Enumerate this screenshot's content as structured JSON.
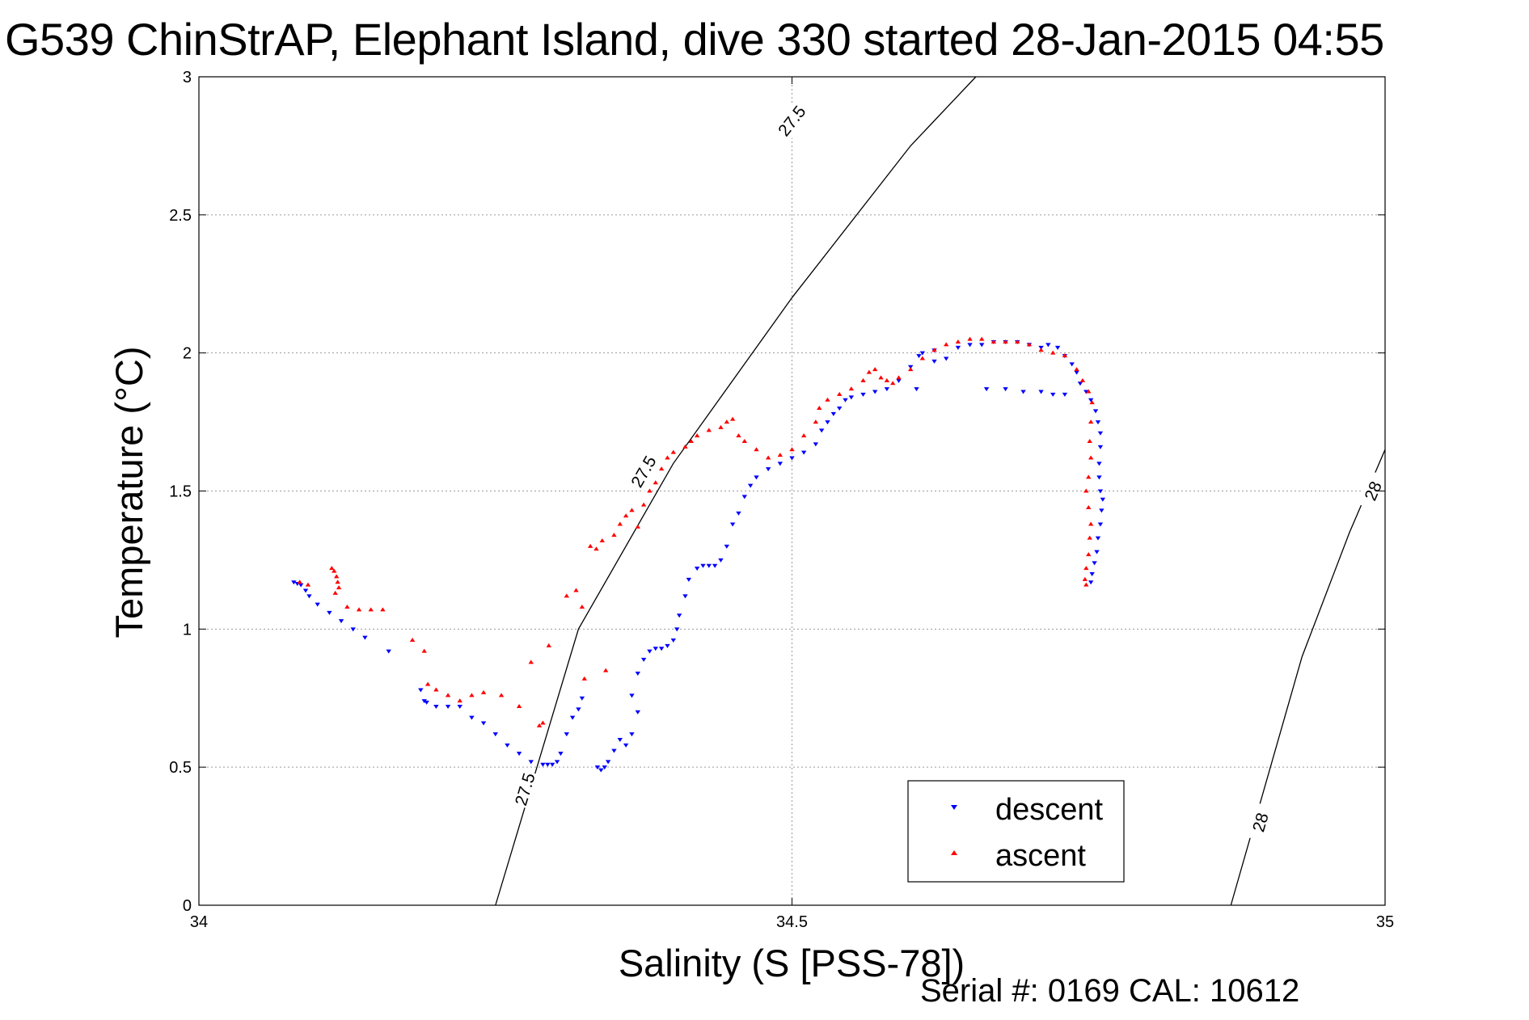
{
  "title": "G539 ChinStrAP, Elephant Island, dive 330 started 28-Jan-2015 04:55",
  "footer_note": "Serial #: 0169 CAL: 10612",
  "chart_data": {
    "type": "scatter",
    "title": "G539 ChinStrAP, Elephant Island, dive 330 started 28-Jan-2015 04:55",
    "xlabel": "Salinity (S [PSS-78])",
    "ylabel": "Temperature (°C)",
    "xlim": [
      34,
      35
    ],
    "ylim": [
      0,
      3
    ],
    "x_ticks": [
      34,
      34.5,
      35
    ],
    "x_tick_labels": [
      "34",
      "34.5",
      "35"
    ],
    "y_ticks": [
      0,
      0.5,
      1,
      1.5,
      2,
      2.5,
      3
    ],
    "y_tick_labels": [
      "0",
      "0.5",
      "1",
      "1.5",
      "2",
      "2.5",
      "3"
    ],
    "grid": true,
    "legend_position": "bottom-right",
    "density_contours": [
      {
        "label": "27.5",
        "color": "#000000",
        "points": [
          [
            34.25,
            0
          ],
          [
            34.32,
            1.0
          ],
          [
            34.4,
            1.6
          ],
          [
            34.5,
            2.2
          ],
          [
            34.6,
            2.75
          ],
          [
            34.655,
            3.0
          ]
        ],
        "label_positions": [
          [
            34.275,
            0.42
          ],
          [
            34.375,
            1.57
          ],
          [
            34.5,
            2.84
          ]
        ]
      },
      {
        "label": "28",
        "color": "#000000",
        "points": [
          [
            34.87,
            0
          ],
          [
            34.93,
            0.9
          ],
          [
            34.97,
            1.35
          ],
          [
            35.0,
            1.65
          ]
        ],
        "label_positions": [
          [
            34.895,
            0.3
          ],
          [
            34.99,
            1.5
          ]
        ]
      }
    ],
    "series": [
      {
        "name": "descent",
        "color": "#0000ff",
        "marker": "triangle-down",
        "points": [
          [
            34.08,
            1.17
          ],
          [
            34.083,
            1.165
          ],
          [
            34.086,
            1.16
          ],
          [
            34.09,
            1.14
          ],
          [
            34.093,
            1.12
          ],
          [
            34.1,
            1.09
          ],
          [
            34.11,
            1.06
          ],
          [
            34.12,
            1.03
          ],
          [
            34.13,
            1.0
          ],
          [
            34.14,
            0.97
          ],
          [
            34.16,
            0.92
          ],
          [
            34.187,
            0.78
          ],
          [
            34.19,
            0.74
          ],
          [
            34.192,
            0.735
          ],
          [
            34.2,
            0.72
          ],
          [
            34.21,
            0.72
          ],
          [
            34.22,
            0.72
          ],
          [
            34.23,
            0.68
          ],
          [
            34.24,
            0.66
          ],
          [
            34.25,
            0.62
          ],
          [
            34.26,
            0.58
          ],
          [
            34.27,
            0.55
          ],
          [
            34.28,
            0.52
          ],
          [
            34.29,
            0.51
          ],
          [
            34.294,
            0.51
          ],
          [
            34.298,
            0.51
          ],
          [
            34.302,
            0.52
          ],
          [
            34.305,
            0.55
          ],
          [
            34.31,
            0.62
          ],
          [
            34.315,
            0.68
          ],
          [
            34.32,
            0.71
          ],
          [
            34.323,
            0.75
          ],
          [
            34.336,
            0.5
          ],
          [
            34.339,
            0.49
          ],
          [
            34.342,
            0.5
          ],
          [
            34.345,
            0.52
          ],
          [
            34.35,
            0.56
          ],
          [
            34.355,
            0.6
          ],
          [
            34.36,
            0.58
          ],
          [
            34.365,
            0.62
          ],
          [
            34.37,
            0.7
          ],
          [
            34.365,
            0.76
          ],
          [
            34.37,
            0.84
          ],
          [
            34.375,
            0.89
          ],
          [
            34.38,
            0.92
          ],
          [
            34.385,
            0.93
          ],
          [
            34.39,
            0.93
          ],
          [
            34.395,
            0.94
          ],
          [
            34.4,
            0.96
          ],
          [
            34.403,
            1.0
          ],
          [
            34.405,
            1.05
          ],
          [
            34.41,
            1.12
          ],
          [
            34.413,
            1.18
          ],
          [
            34.42,
            1.22
          ],
          [
            34.425,
            1.23
          ],
          [
            34.43,
            1.23
          ],
          [
            34.435,
            1.23
          ],
          [
            34.44,
            1.25
          ],
          [
            34.445,
            1.3
          ],
          [
            34.45,
            1.38
          ],
          [
            34.455,
            1.42
          ],
          [
            34.46,
            1.48
          ],
          [
            34.465,
            1.52
          ],
          [
            34.47,
            1.55
          ],
          [
            34.48,
            1.58
          ],
          [
            34.49,
            1.6
          ],
          [
            34.5,
            1.62
          ],
          [
            34.51,
            1.64
          ],
          [
            34.52,
            1.67
          ],
          [
            34.525,
            1.72
          ],
          [
            34.53,
            1.75
          ],
          [
            34.535,
            1.78
          ],
          [
            34.54,
            1.8
          ],
          [
            34.545,
            1.83
          ],
          [
            34.55,
            1.84
          ],
          [
            34.56,
            1.85
          ],
          [
            34.57,
            1.86
          ],
          [
            34.58,
            1.87
          ],
          [
            34.59,
            1.9
          ],
          [
            34.6,
            1.95
          ],
          [
            34.607,
            1.99
          ],
          [
            34.61,
            2.0
          ],
          [
            34.62,
            2.01
          ],
          [
            34.62,
            1.97
          ],
          [
            34.63,
            1.98
          ],
          [
            34.64,
            2.02
          ],
          [
            34.65,
            2.03
          ],
          [
            34.66,
            2.03
          ],
          [
            34.67,
            2.04
          ],
          [
            34.68,
            2.04
          ],
          [
            34.69,
            2.04
          ],
          [
            34.7,
            2.03
          ],
          [
            34.71,
            2.02
          ],
          [
            34.716,
            2.03
          ],
          [
            34.724,
            2.02
          ],
          [
            34.73,
            1.99
          ],
          [
            34.736,
            1.96
          ],
          [
            34.74,
            1.93
          ],
          [
            34.743,
            1.89
          ],
          [
            34.748,
            1.86
          ],
          [
            34.752,
            1.83
          ],
          [
            34.756,
            1.79
          ],
          [
            34.758,
            1.75
          ],
          [
            34.76,
            1.71
          ],
          [
            34.76,
            1.66
          ],
          [
            34.759,
            1.6
          ],
          [
            34.759,
            1.55
          ],
          [
            34.76,
            1.5
          ],
          [
            34.762,
            1.47
          ],
          [
            34.761,
            1.43
          ],
          [
            34.76,
            1.38
          ],
          [
            34.758,
            1.33
          ],
          [
            34.757,
            1.28
          ],
          [
            34.755,
            1.24
          ],
          [
            34.753,
            1.2
          ],
          [
            34.752,
            1.17
          ],
          [
            34.664,
            1.87
          ],
          [
            34.68,
            1.87
          ],
          [
            34.695,
            1.86
          ],
          [
            34.71,
            1.86
          ],
          [
            34.72,
            1.85
          ],
          [
            34.73,
            1.85
          ],
          [
            34.605,
            1.87
          ]
        ]
      },
      {
        "name": "ascent",
        "color": "#ff0000",
        "marker": "triangle-up",
        "points": [
          [
            34.085,
            1.17
          ],
          [
            34.092,
            1.16
          ],
          [
            34.112,
            1.22
          ],
          [
            34.114,
            1.21
          ],
          [
            34.116,
            1.19
          ],
          [
            34.117,
            1.17
          ],
          [
            34.118,
            1.15
          ],
          [
            34.115,
            1.13
          ],
          [
            34.125,
            1.08
          ],
          [
            34.135,
            1.07
          ],
          [
            34.145,
            1.07
          ],
          [
            34.155,
            1.07
          ],
          [
            34.18,
            0.96
          ],
          [
            34.19,
            0.92
          ],
          [
            34.193,
            0.8
          ],
          [
            34.2,
            0.78
          ],
          [
            34.21,
            0.76
          ],
          [
            34.22,
            0.74
          ],
          [
            34.23,
            0.76
          ],
          [
            34.24,
            0.77
          ],
          [
            34.255,
            0.76
          ],
          [
            34.27,
            0.72
          ],
          [
            34.28,
            0.88
          ],
          [
            34.287,
            0.65
          ],
          [
            34.29,
            0.66
          ],
          [
            34.295,
            0.94
          ],
          [
            34.31,
            1.12
          ],
          [
            34.318,
            1.14
          ],
          [
            34.323,
            1.08
          ],
          [
            34.325,
            0.82
          ],
          [
            34.33,
            1.3
          ],
          [
            34.335,
            1.29
          ],
          [
            34.34,
            1.32
          ],
          [
            34.343,
            0.85
          ],
          [
            34.35,
            1.34
          ],
          [
            34.355,
            1.38
          ],
          [
            34.36,
            1.41
          ],
          [
            34.365,
            1.43
          ],
          [
            34.37,
            1.37
          ],
          [
            34.375,
            1.45
          ],
          [
            34.38,
            1.5
          ],
          [
            34.385,
            1.53
          ],
          [
            34.39,
            1.58
          ],
          [
            34.395,
            1.62
          ],
          [
            34.4,
            1.64
          ],
          [
            34.41,
            1.66
          ],
          [
            34.415,
            1.68
          ],
          [
            34.42,
            1.7
          ],
          [
            34.43,
            1.72
          ],
          [
            34.44,
            1.73
          ],
          [
            34.445,
            1.75
          ],
          [
            34.45,
            1.76
          ],
          [
            34.455,
            1.7
          ],
          [
            34.46,
            1.68
          ],
          [
            34.47,
            1.65
          ],
          [
            34.48,
            1.62
          ],
          [
            34.49,
            1.63
          ],
          [
            34.5,
            1.65
          ],
          [
            34.51,
            1.7
          ],
          [
            34.52,
            1.75
          ],
          [
            34.523,
            1.8
          ],
          [
            34.53,
            1.83
          ],
          [
            34.54,
            1.85
          ],
          [
            34.55,
            1.87
          ],
          [
            34.56,
            1.9
          ],
          [
            34.565,
            1.93
          ],
          [
            34.57,
            1.94
          ],
          [
            34.575,
            1.91
          ],
          [
            34.58,
            1.9
          ],
          [
            34.585,
            1.89
          ],
          [
            34.59,
            1.91
          ],
          [
            34.6,
            1.94
          ],
          [
            34.61,
            1.98
          ],
          [
            34.62,
            2.01
          ],
          [
            34.63,
            2.03
          ],
          [
            34.64,
            2.04
          ],
          [
            34.65,
            2.05
          ],
          [
            34.66,
            2.05
          ],
          [
            34.67,
            2.04
          ],
          [
            34.68,
            2.04
          ],
          [
            34.69,
            2.04
          ],
          [
            34.7,
            2.03
          ],
          [
            34.71,
            2.01
          ],
          [
            34.72,
            2.0
          ],
          [
            34.73,
            1.99
          ],
          [
            34.74,
            1.94
          ],
          [
            34.745,
            1.9
          ],
          [
            34.75,
            1.86
          ],
          [
            34.753,
            1.82
          ],
          [
            34.752,
            1.75
          ],
          [
            34.751,
            1.68
          ],
          [
            34.752,
            1.62
          ],
          [
            34.75,
            1.55
          ],
          [
            34.748,
            1.5
          ],
          [
            34.75,
            1.44
          ],
          [
            34.752,
            1.38
          ],
          [
            34.751,
            1.33
          ],
          [
            34.75,
            1.27
          ],
          [
            34.748,
            1.22
          ],
          [
            34.747,
            1.18
          ],
          [
            34.748,
            1.16
          ]
        ]
      }
    ]
  }
}
